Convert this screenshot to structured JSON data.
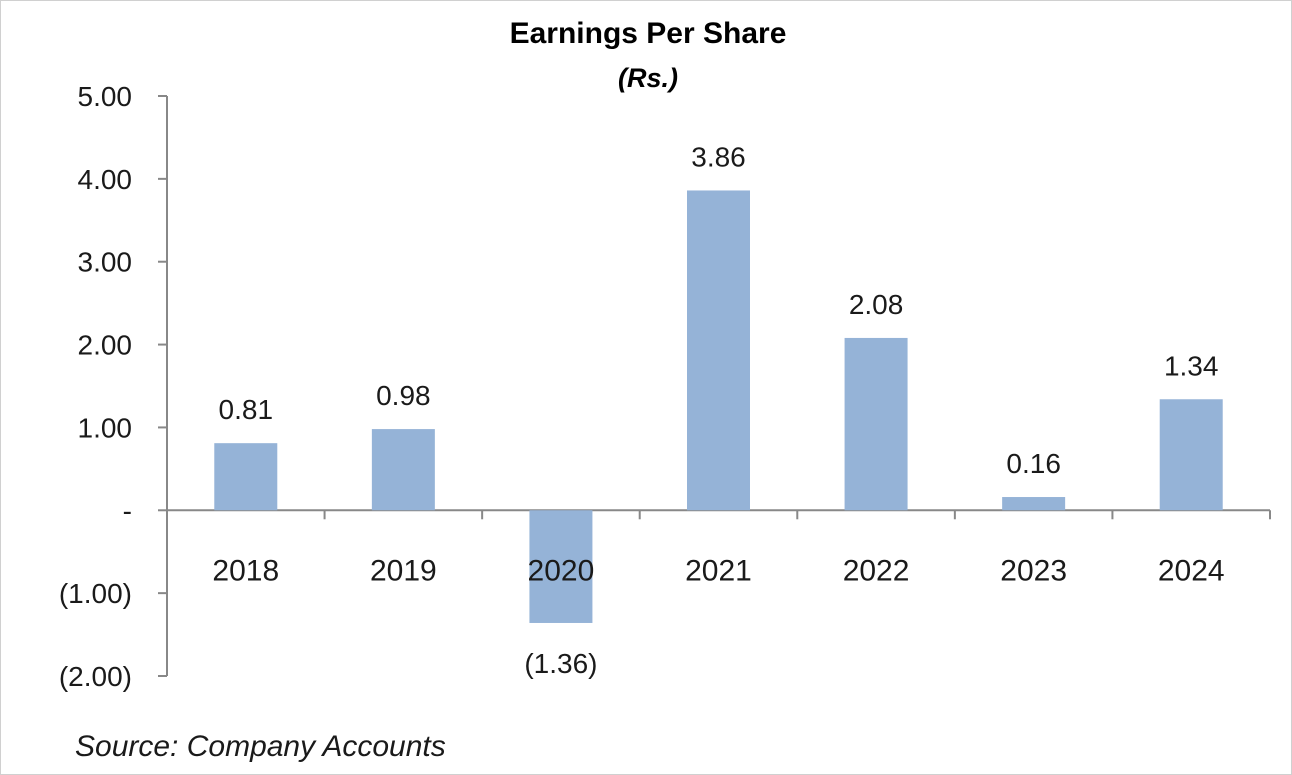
{
  "chart_data": {
    "type": "bar",
    "title": "Earnings Per Share",
    "subtitle": "(Rs.)",
    "categories": [
      "2018",
      "2019",
      "2020",
      "2021",
      "2022",
      "2023",
      "2024"
    ],
    "values": [
      0.81,
      0.98,
      -1.36,
      3.86,
      2.08,
      0.16,
      1.34
    ],
    "data_labels": [
      "0.81",
      "0.98",
      "(1.36)",
      "3.86",
      "2.08",
      "0.16",
      "1.34"
    ],
    "ylim": [
      -2,
      5
    ],
    "yticks": [
      5,
      4,
      3,
      2,
      1,
      0,
      -1,
      -2
    ],
    "ytick_labels": [
      "5.00",
      "4.00",
      "3.00",
      "2.00",
      "1.00",
      "-",
      "(1.00)",
      "(2.00)"
    ],
    "xlabel": "",
    "ylabel": "",
    "grid": false,
    "legend": "none",
    "bar_color": "#95b3d7",
    "source": "Source: Company Accounts"
  }
}
